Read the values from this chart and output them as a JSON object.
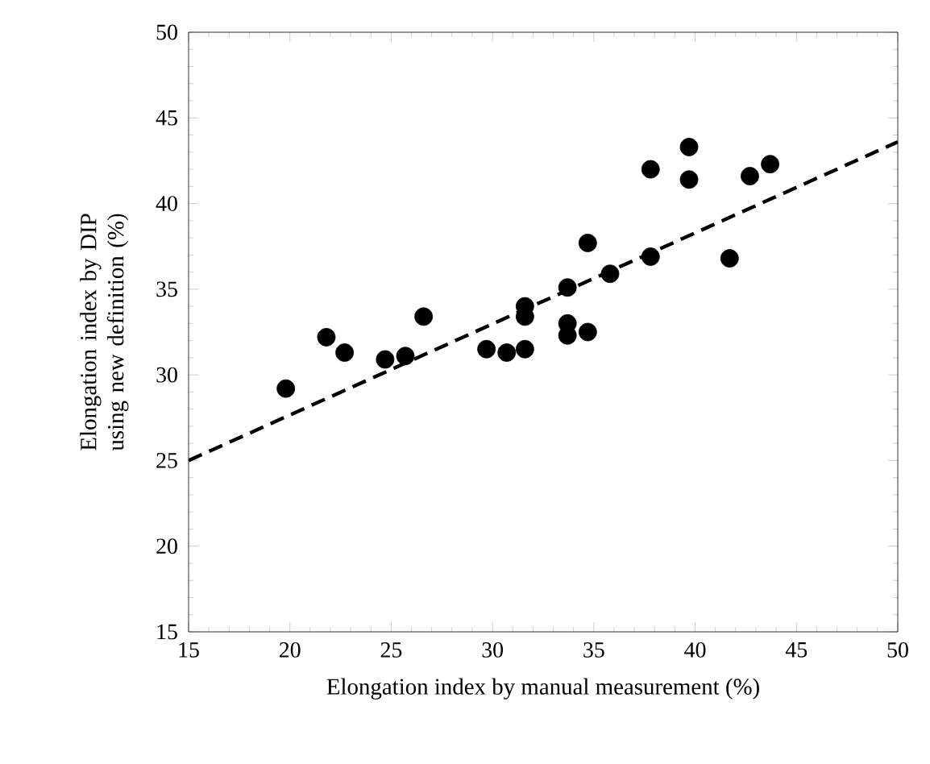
{
  "chart_data": {
    "type": "scatter",
    "xlabel": "Elongation index by manual measurement (%)",
    "ylabel": "Elongation index by DIP using new definition (%)",
    "xlim": [
      15,
      50
    ],
    "ylim": [
      15,
      50
    ],
    "xticks": [
      15,
      20,
      25,
      30,
      35,
      40,
      45,
      50
    ],
    "yticks": [
      15,
      20,
      25,
      30,
      35,
      40,
      45,
      50
    ],
    "grid": false,
    "series": [
      {
        "color": "#000000",
        "marker": "circle",
        "x": [
          19.8,
          21.8,
          22.7,
          24.7,
          25.7,
          26.6,
          29.7,
          30.7,
          31.6,
          31.6,
          31.6,
          33.7,
          33.7,
          33.7,
          34.7,
          34.7,
          35.8,
          37.8,
          37.8,
          39.7,
          39.7,
          41.7,
          42.7,
          43.7
        ],
        "values": [
          29.2,
          32.2,
          31.3,
          30.9,
          31.1,
          33.4,
          31.5,
          31.3,
          31.5,
          33.4,
          34.0,
          32.3,
          33.0,
          35.1,
          32.5,
          37.7,
          35.9,
          36.9,
          42.0,
          43.3,
          41.4,
          36.8,
          41.6,
          42.3
        ]
      },
      {
        "type": "line",
        "color": "#000000",
        "line_style": "dashed",
        "marker": "none",
        "x": [
          15,
          50
        ],
        "values": [
          25.0,
          43.6
        ]
      }
    ]
  }
}
